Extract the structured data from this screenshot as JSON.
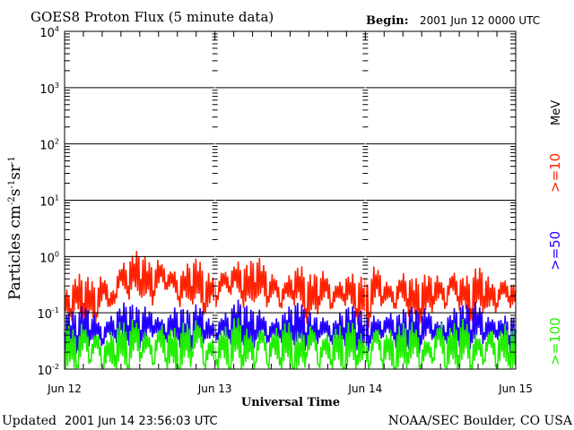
{
  "chart_data": {
    "type": "line",
    "title": "GOES8 Proton Flux (5 minute data)",
    "begin_label": "Begin:",
    "begin_value": "2001 Jun 12 0000 UTC",
    "xlabel": "Universal Time",
    "ylabel": "Particles cm",
    "ylabel_parts": [
      "Particles cm",
      "-2",
      "s",
      "-1",
      "sr",
      "-1"
    ],
    "yscale": "log",
    "ylim": [
      0.01,
      10000
    ],
    "ytick_exponents": [
      "4",
      "3",
      "2",
      "1",
      "0",
      "-1",
      "-2"
    ],
    "xlim_hours": [
      0,
      72
    ],
    "xtick_labels": [
      "Jun 12",
      "Jun 13",
      "Jun 14",
      "Jun 15"
    ],
    "grid": true,
    "unit_label": "MeV",
    "series": [
      {
        "name": ">=10",
        "color": "#ff2200",
        "values": [
          0.2,
          0.12,
          0.3,
          0.15,
          0.25,
          0.1,
          0.35,
          0.18,
          0.22,
          0.6,
          0.3,
          0.75,
          0.4,
          0.55,
          0.25,
          0.7,
          0.35,
          0.5,
          0.2,
          0.45,
          0.3,
          0.55,
          0.15,
          0.35,
          0.2,
          0.5,
          0.3,
          0.6,
          0.25,
          0.45,
          0.35,
          0.55,
          0.2,
          0.4,
          0.15,
          0.35,
          0.25,
          0.45,
          0.12,
          0.3,
          0.2,
          0.4,
          0.15,
          0.3,
          0.22,
          0.35,
          0.12,
          0.28,
          0.1,
          0.48,
          0.2,
          0.3,
          0.15,
          0.38,
          0.18,
          0.25,
          0.12,
          0.3,
          0.2,
          0.35,
          0.15,
          0.45,
          0.2,
          0.3,
          0.12,
          0.4,
          0.2,
          0.28,
          0.15,
          0.35,
          0.2,
          0.25
        ]
      },
      {
        "name": ">=50",
        "color": "#2200ff",
        "values": [
          0.045,
          0.06,
          0.04,
          0.08,
          0.05,
          0.065,
          0.035,
          0.07,
          0.05,
          0.09,
          0.06,
          0.075,
          0.05,
          0.085,
          0.06,
          0.07,
          0.045,
          0.08,
          0.055,
          0.065,
          0.04,
          0.09,
          0.05,
          0.06,
          0.045,
          0.075,
          0.05,
          0.1,
          0.06,
          0.07,
          0.05,
          0.08,
          0.04,
          0.065,
          0.05,
          0.075,
          0.06,
          0.085,
          0.045,
          0.06,
          0.05,
          0.07,
          0.04,
          0.065,
          0.055,
          0.075,
          0.045,
          0.06,
          0.04,
          0.07,
          0.05,
          0.08,
          0.045,
          0.065,
          0.05,
          0.07,
          0.04,
          0.085,
          0.05,
          0.06,
          0.045,
          0.075,
          0.055,
          0.08,
          0.05,
          0.1,
          0.045,
          0.07,
          0.05,
          0.065,
          0.04,
          0.05
        ]
      },
      {
        "name": ">=100",
        "color": "#22ee00",
        "values": [
          0.02,
          0.035,
          0.012,
          0.05,
          0.015,
          0.04,
          0.011,
          0.03,
          0.018,
          0.045,
          0.012,
          0.055,
          0.02,
          0.04,
          0.013,
          0.05,
          0.016,
          0.035,
          0.011,
          0.045,
          0.02,
          0.06,
          0.012,
          0.03,
          0.015,
          0.04,
          0.011,
          0.055,
          0.018,
          0.035,
          0.013,
          0.05,
          0.012,
          0.04,
          0.016,
          0.045,
          0.011,
          0.03,
          0.02,
          0.05,
          0.012,
          0.035,
          0.015,
          0.04,
          0.011,
          0.045,
          0.018,
          0.03,
          0.012,
          0.05,
          0.015,
          0.035,
          0.011,
          0.04,
          0.02,
          0.045,
          0.012,
          0.03,
          0.016,
          0.055,
          0.011,
          0.04,
          0.018,
          0.05,
          0.012,
          0.035,
          0.015,
          0.045,
          0.011,
          0.04,
          0.02,
          0.03
        ]
      }
    ]
  },
  "footer": {
    "updated_label": "Updated",
    "updated_value": "2001 Jun 14 23:56:03 UTC",
    "source": "NOAA/SEC Boulder, CO USA"
  }
}
